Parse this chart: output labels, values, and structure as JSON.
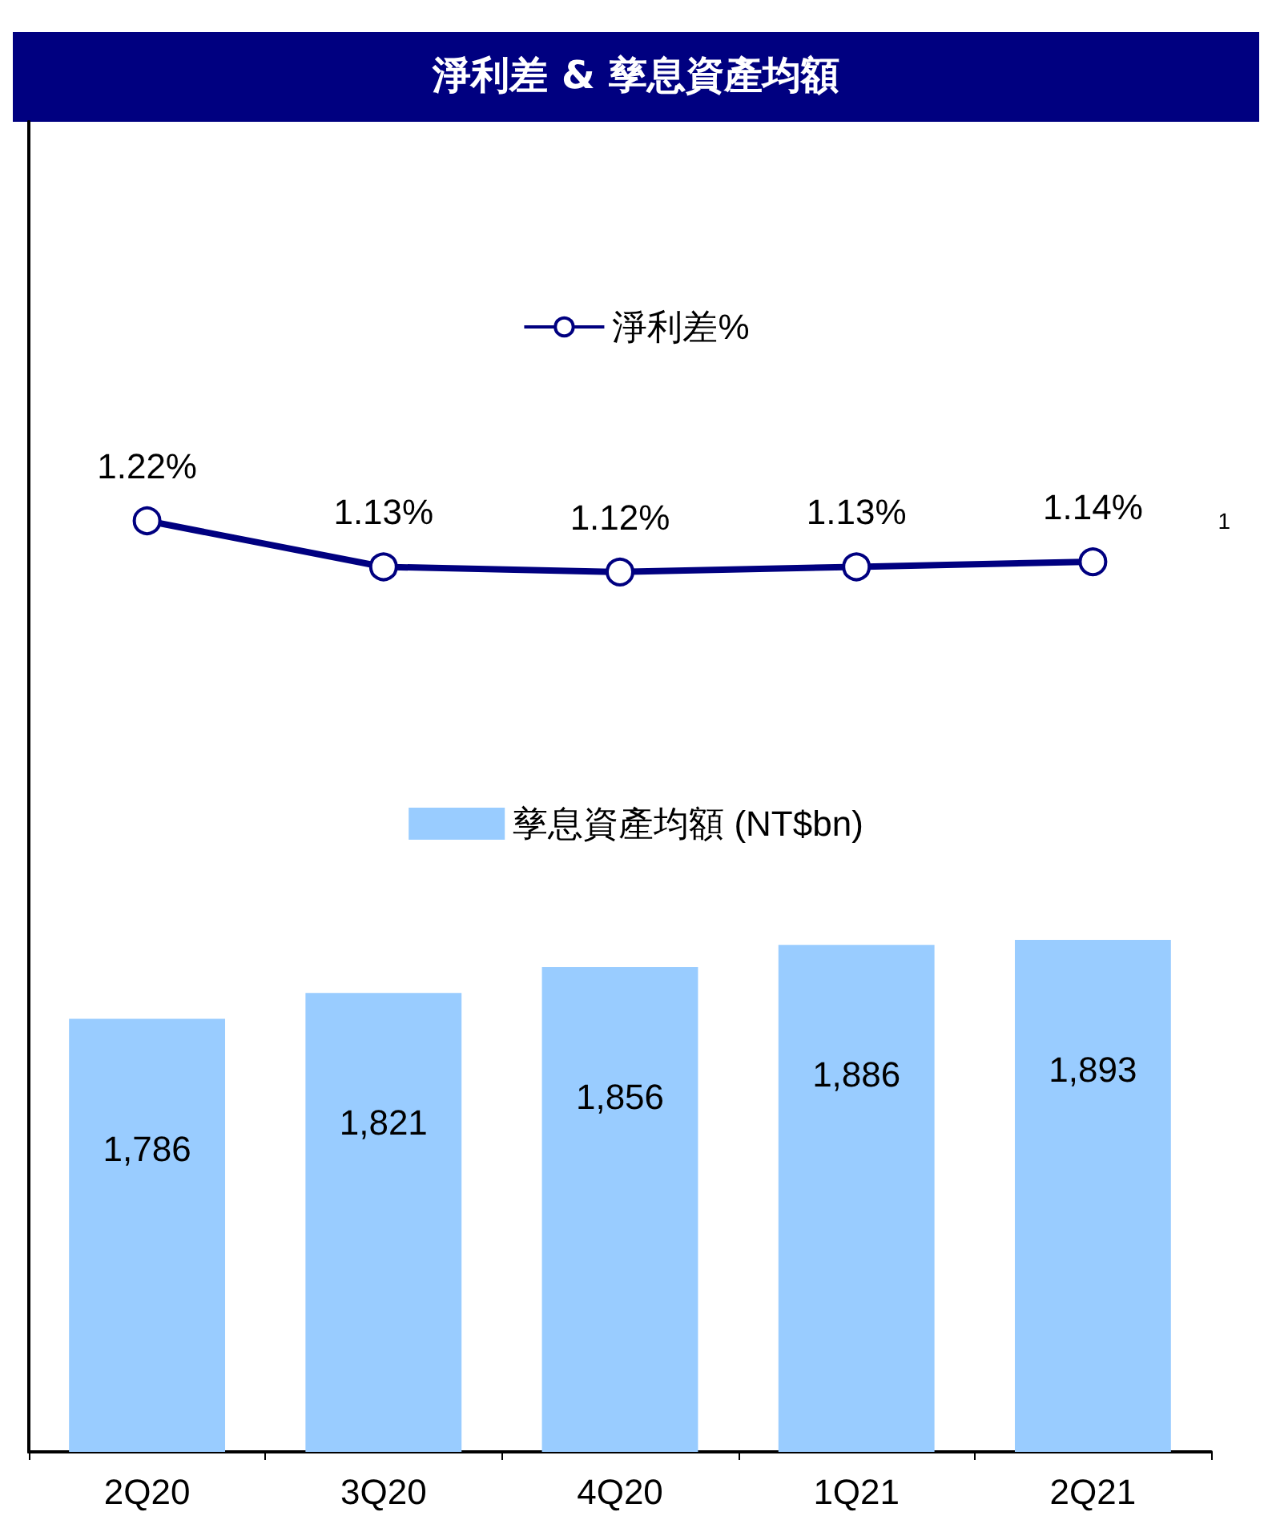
{
  "chart_data": {
    "type": "bar",
    "title": "淨利差 & 孳息資產均額",
    "categories": [
      "2Q20",
      "3Q20",
      "4Q20",
      "1Q21",
      "2Q21"
    ],
    "series": [
      {
        "name": "淨利差%",
        "type": "line",
        "axis": "y2",
        "color": "#000080",
        "values": [
          1.22,
          1.13,
          1.12,
          1.13,
          1.14
        ],
        "value_labels": [
          "1.22%",
          "1.13%",
          "1.12%",
          "1.13%",
          "1.14%"
        ]
      },
      {
        "name": "孳息資產均額 (NT$bn)",
        "color": "#99ccff",
        "values": [
          1786,
          1821,
          1856,
          1886,
          1893
        ],
        "value_labels": [
          "1,786",
          "1,821",
          "1,856",
          "1,886",
          "1,893"
        ]
      }
    ],
    "ylim": [
      1200,
      3000
    ],
    "y2lim": [
      -0.6,
      2.0
    ],
    "legend": "top",
    "marker": "circle",
    "tick_labels": "x",
    "annotations": [
      "1"
    ]
  }
}
